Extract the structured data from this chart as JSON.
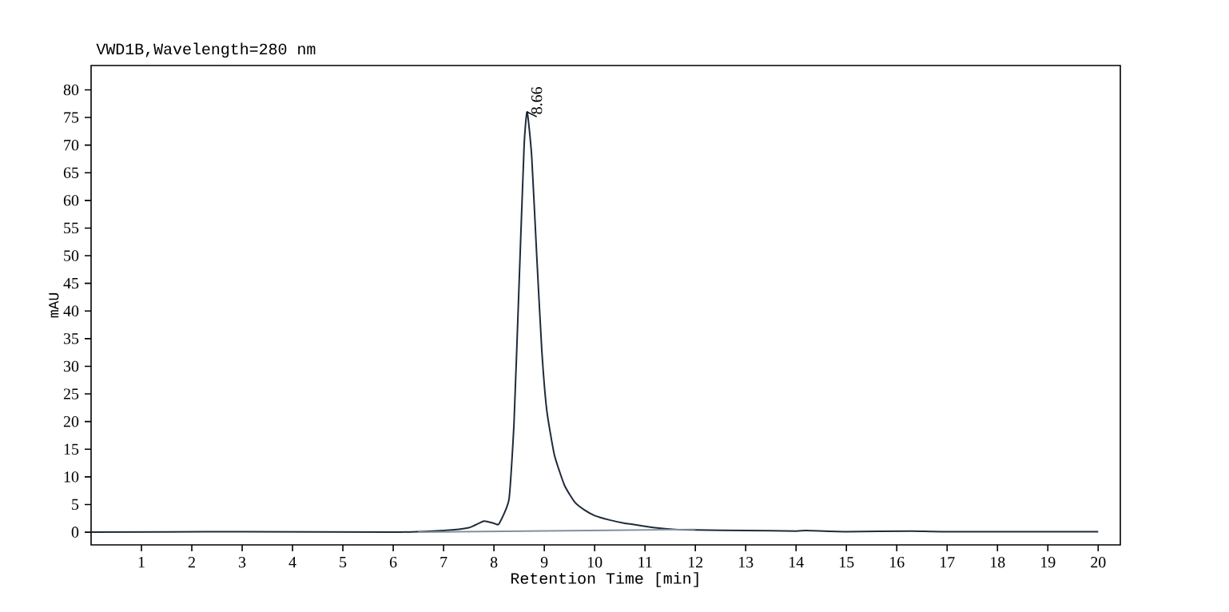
{
  "chart_data": {
    "type": "line",
    "title": "VWD1B,Wavelength=280 nm",
    "xlabel": "Retention Time [min]",
    "ylabel": "mAU",
    "xlim": [
      0,
      20.44
    ],
    "ylim": [
      -2.3,
      84.4
    ],
    "xticks": [
      1,
      2,
      3,
      4,
      5,
      6,
      7,
      8,
      9,
      10,
      11,
      12,
      13,
      14,
      15,
      16,
      17,
      18,
      19,
      20
    ],
    "yticks": [
      0,
      5,
      10,
      15,
      20,
      25,
      30,
      35,
      40,
      45,
      50,
      55,
      60,
      65,
      70,
      75,
      80
    ],
    "grid": false,
    "marker": "none",
    "line_style": "solid",
    "annotations": [
      {
        "text": "8.66",
        "x": 8.66,
        "y": 76
      }
    ],
    "series": [
      {
        "color": "#1f2a3a",
        "x": [
          0,
          3,
          6,
          7,
          7.5,
          7.8,
          8.0,
          8.1,
          8.3,
          8.4,
          8.5,
          8.6,
          8.66,
          8.75,
          8.85,
          8.95,
          9.05,
          9.2,
          9.4,
          9.6,
          9.8,
          10.0,
          10.3,
          10.6,
          10.7,
          10.9,
          11.2,
          11.6,
          12,
          13,
          14,
          14.2,
          15,
          16.3,
          17,
          20
        ],
        "values": [
          0,
          0.1,
          0,
          0.3,
          0.8,
          2.0,
          1.6,
          1.5,
          6,
          20,
          45,
          70,
          76,
          68,
          50,
          33,
          22,
          14,
          8.5,
          5.5,
          4,
          3,
          2.2,
          1.6,
          1.5,
          1.2,
          0.8,
          0.5,
          0.4,
          0.3,
          0.2,
          0.3,
          0.1,
          0.2,
          0.1,
          0.1
        ]
      },
      {
        "color": "#8090a0",
        "x": [
          6.5,
          12
        ],
        "values": [
          0,
          0.5
        ]
      }
    ]
  }
}
